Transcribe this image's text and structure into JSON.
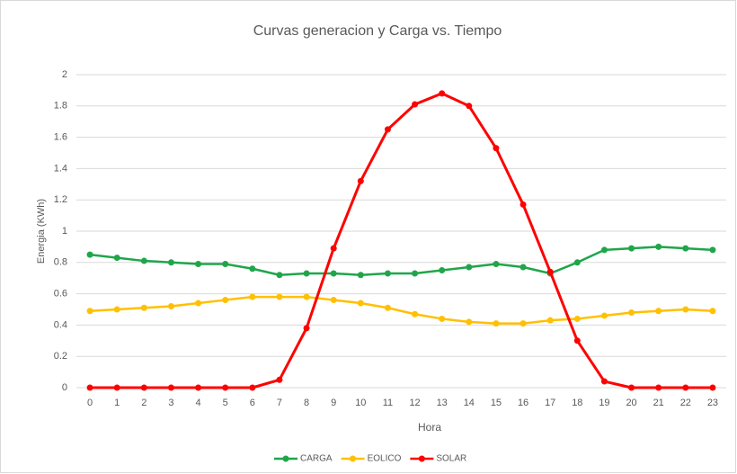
{
  "chart_data": {
    "type": "line",
    "title": "Curvas generacion y Carga vs. Tiempo",
    "x_label": "Hora",
    "y_label": "Energia (KWh)",
    "categories": [
      "0",
      "1",
      "2",
      "3",
      "4",
      "5",
      "6",
      "7",
      "8",
      "9",
      "10",
      "11",
      "12",
      "13",
      "14",
      "15",
      "16",
      "17",
      "18",
      "19",
      "20",
      "21",
      "22",
      "23"
    ],
    "series": [
      {
        "name": "CARGA",
        "color": "#1fa64a",
        "values": [
          0.85,
          0.83,
          0.81,
          0.8,
          0.79,
          0.79,
          0.76,
          0.72,
          0.73,
          0.73,
          0.72,
          0.73,
          0.73,
          0.75,
          0.77,
          0.79,
          0.77,
          0.73,
          0.8,
          0.88,
          0.89,
          0.9,
          0.89,
          0.88
        ]
      },
      {
        "name": "EOLICO",
        "color": "#ffc000",
        "values": [
          0.49,
          0.5,
          0.51,
          0.52,
          0.54,
          0.56,
          0.58,
          0.58,
          0.58,
          0.56,
          0.54,
          0.51,
          0.47,
          0.44,
          0.42,
          0.41,
          0.41,
          0.43,
          0.44,
          0.46,
          0.48,
          0.49,
          0.5,
          0.49
        ]
      },
      {
        "name": "SOLAR",
        "color": "#ff0000",
        "values": [
          0,
          0,
          0,
          0,
          0,
          0,
          0,
          0.05,
          0.38,
          0.89,
          1.32,
          1.65,
          1.81,
          1.88,
          1.8,
          1.53,
          1.17,
          0.74,
          0.3,
          0.04,
          0,
          0,
          0,
          0
        ]
      }
    ],
    "ylim": [
      0,
      2
    ],
    "yticks": [
      0,
      0.2,
      0.4,
      0.6,
      0.8,
      1,
      1.2,
      1.4,
      1.6,
      1.8,
      2
    ],
    "grid": true,
    "legend": "bottom"
  }
}
